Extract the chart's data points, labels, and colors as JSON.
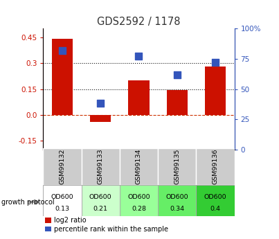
{
  "title": "GDS2592 / 1178",
  "samples": [
    "GSM99132",
    "GSM99133",
    "GSM99134",
    "GSM99135",
    "GSM99136"
  ],
  "log2_ratios": [
    0.44,
    -0.04,
    0.2,
    0.145,
    0.28
  ],
  "percentile_ranks": [
    82,
    38,
    77,
    62,
    72
  ],
  "growth_protocol_labels_top": [
    "OD600",
    "OD600",
    "OD600",
    "OD600",
    "OD600"
  ],
  "growth_protocol_labels_bot": [
    "0.13",
    "0.21",
    "0.28",
    "0.34",
    "0.4"
  ],
  "growth_protocol_colors": [
    "#ffffff",
    "#ccffcc",
    "#99ff99",
    "#66ee66",
    "#33cc33"
  ],
  "bar_color": "#cc1100",
  "dot_color": "#3355bb",
  "ylim_left": [
    -0.2,
    0.5
  ],
  "yticks_left": [
    -0.15,
    0.0,
    0.15,
    0.3,
    0.45
  ],
  "ylim_right": [
    0,
    100
  ],
  "yticks_right": [
    0,
    25,
    50,
    75,
    100
  ],
  "ytick_labels_right": [
    "0",
    "25",
    "50",
    "75",
    "100%"
  ],
  "hlines": [
    0.0,
    0.15,
    0.3
  ],
  "hline_styles": [
    "dashed",
    "dotted",
    "dotted"
  ],
  "hline_colors": [
    "#cc3300",
    "#111111",
    "#111111"
  ],
  "bar_width": 0.55,
  "dot_size": 55,
  "bg_color": "#ffffff",
  "label_color_left": "#cc1100",
  "label_color_right": "#3355bb",
  "legend_items": [
    "log2 ratio",
    "percentile rank within the sample"
  ],
  "sample_label_bg": "#cccccc",
  "growth_protocol_text": "growth protocol"
}
